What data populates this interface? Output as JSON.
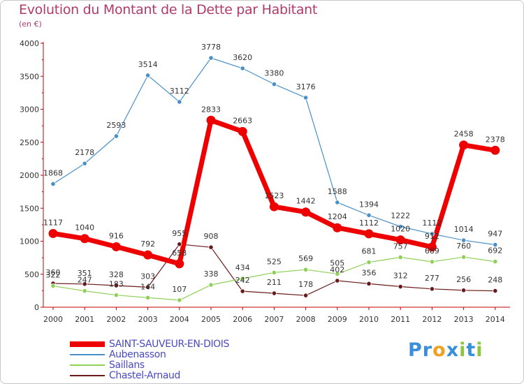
{
  "header": {
    "title": "Evolution du Montant de la Dette par Habitant",
    "subtitle": "(en €)"
  },
  "logo": {
    "text": "Proxiti",
    "letters": [
      {
        "ch": "P",
        "color": "#3a8fd8"
      },
      {
        "ch": "r",
        "color": "#3a8fd8"
      },
      {
        "ch": "o",
        "color": "#f0a020"
      },
      {
        "ch": "x",
        "color": "#3a8fd8"
      },
      {
        "ch": "i",
        "color": "#8cc63f"
      },
      {
        "ch": "t",
        "color": "#3a8fd8"
      },
      {
        "ch": "i",
        "color": "#8cc63f"
      }
    ]
  },
  "chart_data": {
    "type": "line",
    "x": [
      "2000",
      "2001",
      "2002",
      "2003",
      "2004",
      "2005",
      "2006",
      "2007",
      "2008",
      "2009",
      "2010",
      "2011",
      "2012",
      "2013",
      "2014"
    ],
    "ylim": [
      0,
      4000
    ],
    "yticks": [
      0,
      500,
      1000,
      1500,
      2000,
      2500,
      3000,
      3500,
      4000
    ],
    "grid": false,
    "legend_position": "bottom-left",
    "series": [
      {
        "name": "SAINT-SAUVEUR-EN-DIOIS",
        "color": "#ee0000",
        "values": [
          1117,
          1040,
          916,
          792,
          658,
          2833,
          2663,
          1523,
          1442,
          1204,
          1112,
          1020,
          912,
          2458,
          2378
        ],
        "labels": [
          "1117",
          "1040",
          "916",
          "792",
          "658",
          "2833",
          "2663",
          "1523",
          "1442",
          "1204",
          "1112",
          "1020",
          "912",
          "2458",
          "2378"
        ]
      },
      {
        "name": "Aubenasson",
        "color": "#4a90c8",
        "values": [
          1868,
          2178,
          2593,
          3514,
          3112,
          3778,
          3620,
          3380,
          3176,
          1588,
          1394,
          1222,
          1112,
          1014,
          947
        ],
        "labels": [
          "1868",
          "2178",
          "2593",
          "3514",
          "3112",
          "3778",
          "3620",
          "3380",
          "3176",
          "1588",
          "1394",
          "1222",
          "1112",
          "1014",
          "947"
        ]
      },
      {
        "name": "Saillans",
        "color": "#90d058",
        "values": [
          322,
          247,
          183,
          144,
          107,
          338,
          434,
          525,
          569,
          505,
          681,
          757,
          689,
          760,
          692
        ],
        "labels": [
          "322",
          "247",
          "183",
          "144",
          "107",
          "338",
          "434",
          "525",
          "569",
          "505",
          "681",
          "757",
          "689",
          "760",
          "692"
        ]
      },
      {
        "name": "Chastel-Arnaud",
        "color": "#6a1a1a",
        "values": [
          360,
          351,
          328,
          303,
          955,
          908,
          242,
          211,
          178,
          402,
          356,
          312,
          277,
          256,
          248
        ],
        "labels": [
          "360",
          "351",
          "328",
          "303",
          "955",
          "908",
          "242",
          "211",
          "178",
          "402",
          "356",
          "312",
          "277",
          "256",
          "248"
        ]
      }
    ]
  }
}
